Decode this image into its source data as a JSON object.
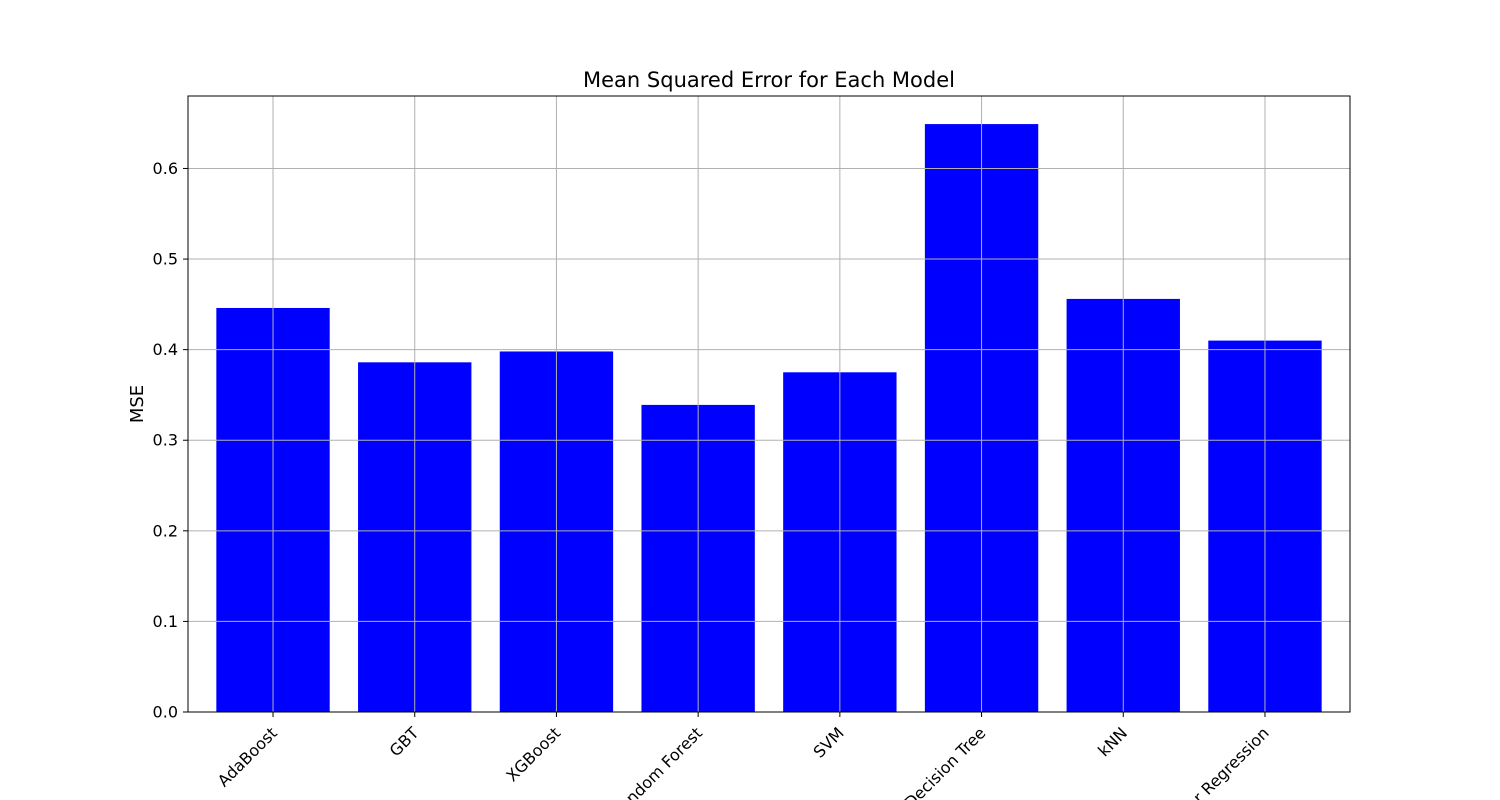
{
  "chart_data": {
    "type": "bar",
    "title": "Mean Squared Error for Each Model",
    "xlabel": "",
    "ylabel": "MSE",
    "categories": [
      "AdaBoost",
      "GBT",
      "XGBoost",
      "Random Forest",
      "SVM",
      "Decision Tree",
      "kNN",
      "Linear Regression"
    ],
    "values": [
      0.446,
      0.386,
      0.398,
      0.339,
      0.375,
      0.649,
      0.456,
      0.41
    ],
    "ylim": [
      0,
      0.68
    ],
    "yticks": [
      "0.0",
      "0.1",
      "0.2",
      "0.3",
      "0.4",
      "0.5",
      "0.6"
    ],
    "grid": true,
    "bar_color": "#0000ff",
    "grid_color": "#b0b0b0",
    "xtick_rotation_deg": 45
  }
}
